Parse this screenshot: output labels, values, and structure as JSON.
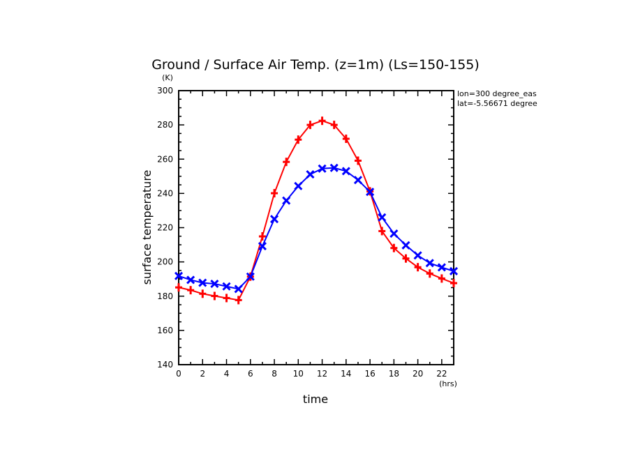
{
  "chart_data": {
    "type": "line",
    "title": "Ground / Surface Air Temp. (z=1m) (Ls=150-155)",
    "xlabel": "time",
    "xunit": "(hrs)",
    "ylabel": "surface temperature",
    "yunit": "(K)",
    "annotations": [
      "lon=300 degree_eas",
      "lat=-5.56671 degree"
    ],
    "xlim": [
      0,
      23
    ],
    "ylim": [
      140,
      300
    ],
    "xticks": [
      0,
      2,
      4,
      6,
      8,
      10,
      12,
      14,
      16,
      18,
      20,
      22
    ],
    "yticks": [
      140,
      160,
      180,
      200,
      220,
      240,
      260,
      280,
      300
    ],
    "grid": false,
    "x": [
      0,
      1,
      2,
      3,
      4,
      5,
      6,
      7,
      8,
      9,
      10,
      11,
      12,
      13,
      14,
      15,
      16,
      17,
      18,
      19,
      20,
      21,
      22,
      23
    ],
    "series": [
      {
        "color": "#ff0000",
        "marker": "plus",
        "values": [
          185.1,
          183.5,
          181.4,
          180.1,
          178.9,
          177.7,
          191.4,
          214.9,
          240.1,
          258.4,
          271.4,
          280.0,
          282.4,
          280.0,
          271.9,
          259.1,
          241.2,
          218.0,
          208.1,
          202.0,
          196.9,
          193.2,
          190.3,
          187.6
        ]
      },
      {
        "color": "#0000ff",
        "marker": "x",
        "values": [
          191.8,
          189.5,
          187.8,
          187.2,
          185.7,
          184.2,
          191.4,
          209.2,
          225.0,
          235.8,
          244.3,
          251.1,
          254.5,
          254.9,
          253.0,
          247.8,
          240.9,
          226.0,
          216.5,
          209.7,
          203.8,
          199.3,
          196.8,
          194.6
        ]
      }
    ]
  }
}
